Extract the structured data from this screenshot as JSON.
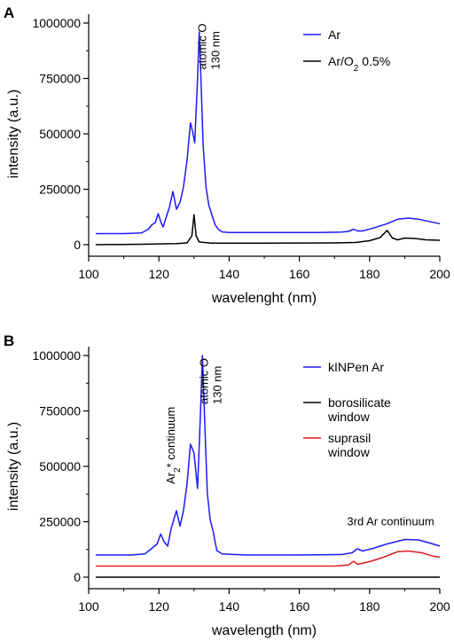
{
  "chart_data": [
    {
      "type": "line",
      "panel_label": "A",
      "xlabel": "wavelenght (nm)",
      "ylabel": "intensity (a.u.)",
      "xlim": [
        100,
        200
      ],
      "ylim": [
        0,
        1000000
      ],
      "x_ticks": [
        "100",
        "120",
        "140",
        "160",
        "180",
        "200"
      ],
      "y_ticks": [
        "0",
        "250000",
        "500000",
        "750000",
        "1000000"
      ],
      "legend_position": "top-right",
      "annotations": [
        {
          "text": "atomic O",
          "line2": "130 nm",
          "x": 133.5,
          "y": 790000,
          "rotation": -90
        }
      ],
      "series": [
        {
          "name": "Ar",
          "color": "#1a1aff",
          "points": [
            [
              102,
              50000
            ],
            [
              110,
              50000
            ],
            [
              115,
              53000
            ],
            [
              117,
              70000
            ],
            [
              118,
              90000
            ],
            [
              119,
              100000
            ],
            [
              119.8,
              140000
            ],
            [
              120.6,
              100000
            ],
            [
              121.2,
              80000
            ],
            [
              122,
              120000
            ],
            [
              123,
              170000
            ],
            [
              124,
              240000
            ],
            [
              125,
              160000
            ],
            [
              126,
              190000
            ],
            [
              127,
              260000
            ],
            [
              128,
              380000
            ],
            [
              129,
              550000
            ],
            [
              129.6,
              510000
            ],
            [
              130.2,
              460000
            ],
            [
              131,
              750000
            ],
            [
              131.5,
              960000
            ],
            [
              132,
              740000
            ],
            [
              132.6,
              450000
            ],
            [
              133.4,
              260000
            ],
            [
              134.2,
              180000
            ],
            [
              135,
              140000
            ],
            [
              136,
              90000
            ],
            [
              137,
              68000
            ],
            [
              138,
              58000
            ],
            [
              140,
              55000
            ],
            [
              150,
              55000
            ],
            [
              165,
              55000
            ],
            [
              172,
              57000
            ],
            [
              174,
              60000
            ],
            [
              175.5,
              70000
            ],
            [
              176.5,
              62000
            ],
            [
              178,
              62000
            ],
            [
              181,
              75000
            ],
            [
              185,
              95000
            ],
            [
              188,
              115000
            ],
            [
              191,
              120000
            ],
            [
              194,
              115000
            ],
            [
              197,
              105000
            ],
            [
              200,
              95000
            ]
          ]
        },
        {
          "name": "Ar/O",
          "name_subscript": "2",
          "name_suffix": " 0.5%",
          "color": "#000000",
          "points": [
            [
              102,
              0
            ],
            [
              115,
              2000
            ],
            [
              125,
              5000
            ],
            [
              128,
              8000
            ],
            [
              129.4,
              40000
            ],
            [
              130,
              135000
            ],
            [
              130.6,
              40000
            ],
            [
              131.5,
              12000
            ],
            [
              135,
              7000
            ],
            [
              150,
              7000
            ],
            [
              170,
              8000
            ],
            [
              176,
              10000
            ],
            [
              180,
              18000
            ],
            [
              183,
              32000
            ],
            [
              185,
              65000
            ],
            [
              186.5,
              30000
            ],
            [
              188,
              22000
            ],
            [
              190,
              30000
            ],
            [
              193,
              28000
            ],
            [
              196,
              22000
            ],
            [
              200,
              20000
            ]
          ]
        }
      ]
    },
    {
      "type": "line",
      "panel_label": "B",
      "xlabel": "wavelength (nm)",
      "ylabel": "intensity (a.u.)",
      "xlim": [
        100,
        200
      ],
      "ylim": [
        0,
        1000000
      ],
      "x_ticks": [
        "100",
        "120",
        "140",
        "160",
        "180",
        "200"
      ],
      "y_ticks": [
        "0",
        "250000",
        "500000",
        "750000",
        "1000000"
      ],
      "legend_position": "top-right",
      "annotations": [
        {
          "text": "Ar",
          "sub": "2",
          "suffix": "* continuum",
          "x": 124.5,
          "y": 420000,
          "rotation": -90
        },
        {
          "text": "atomic O",
          "line2": "130 nm",
          "x": 134,
          "y": 780000,
          "rotation": -90
        },
        {
          "text": "3rd Ar continuum",
          "x": 186,
          "y": 235000,
          "rotation": 0
        }
      ],
      "series": [
        {
          "name": "kINPen Ar",
          "color": "#1a1aff",
          "points": [
            [
              102,
              100000
            ],
            [
              112,
              100000
            ],
            [
              116,
              105000
            ],
            [
              118,
              130000
            ],
            [
              119.5,
              150000
            ],
            [
              120.5,
              195000
            ],
            [
              121.5,
              160000
            ],
            [
              122.5,
              140000
            ],
            [
              123.5,
              220000
            ],
            [
              125,
              300000
            ],
            [
              126,
              230000
            ],
            [
              127,
              300000
            ],
            [
              128,
              420000
            ],
            [
              129,
              600000
            ],
            [
              130,
              560000
            ],
            [
              131,
              400000
            ],
            [
              131.8,
              720000
            ],
            [
              132.4,
              1000000
            ],
            [
              133,
              720000
            ],
            [
              133.8,
              380000
            ],
            [
              134.6,
              260000
            ],
            [
              135.4,
              210000
            ],
            [
              136.5,
              120000
            ],
            [
              138,
              105000
            ],
            [
              145,
              100000
            ],
            [
              160,
              100000
            ],
            [
              172,
              102000
            ],
            [
              175,
              110000
            ],
            [
              176.5,
              128000
            ],
            [
              178,
              118000
            ],
            [
              181,
              130000
            ],
            [
              185,
              150000
            ],
            [
              190,
              170000
            ],
            [
              194,
              168000
            ],
            [
              198,
              150000
            ],
            [
              200,
              140000
            ]
          ]
        },
        {
          "name": "borosilicate",
          "name_line2": "window",
          "color": "#000000",
          "points": [
            [
              102,
              0
            ],
            [
              200,
              0
            ]
          ]
        },
        {
          "name": "suprasil",
          "name_line2": "window",
          "color": "#e31a1c",
          "points": [
            [
              102,
              50000
            ],
            [
              170,
              50000
            ],
            [
              174,
              55000
            ],
            [
              175.5,
              72000
            ],
            [
              176.5,
              58000
            ],
            [
              180,
              70000
            ],
            [
              184,
              90000
            ],
            [
              188,
              115000
            ],
            [
              191,
              118000
            ],
            [
              195,
              110000
            ],
            [
              198,
              95000
            ],
            [
              200,
              90000
            ]
          ]
        }
      ]
    }
  ]
}
